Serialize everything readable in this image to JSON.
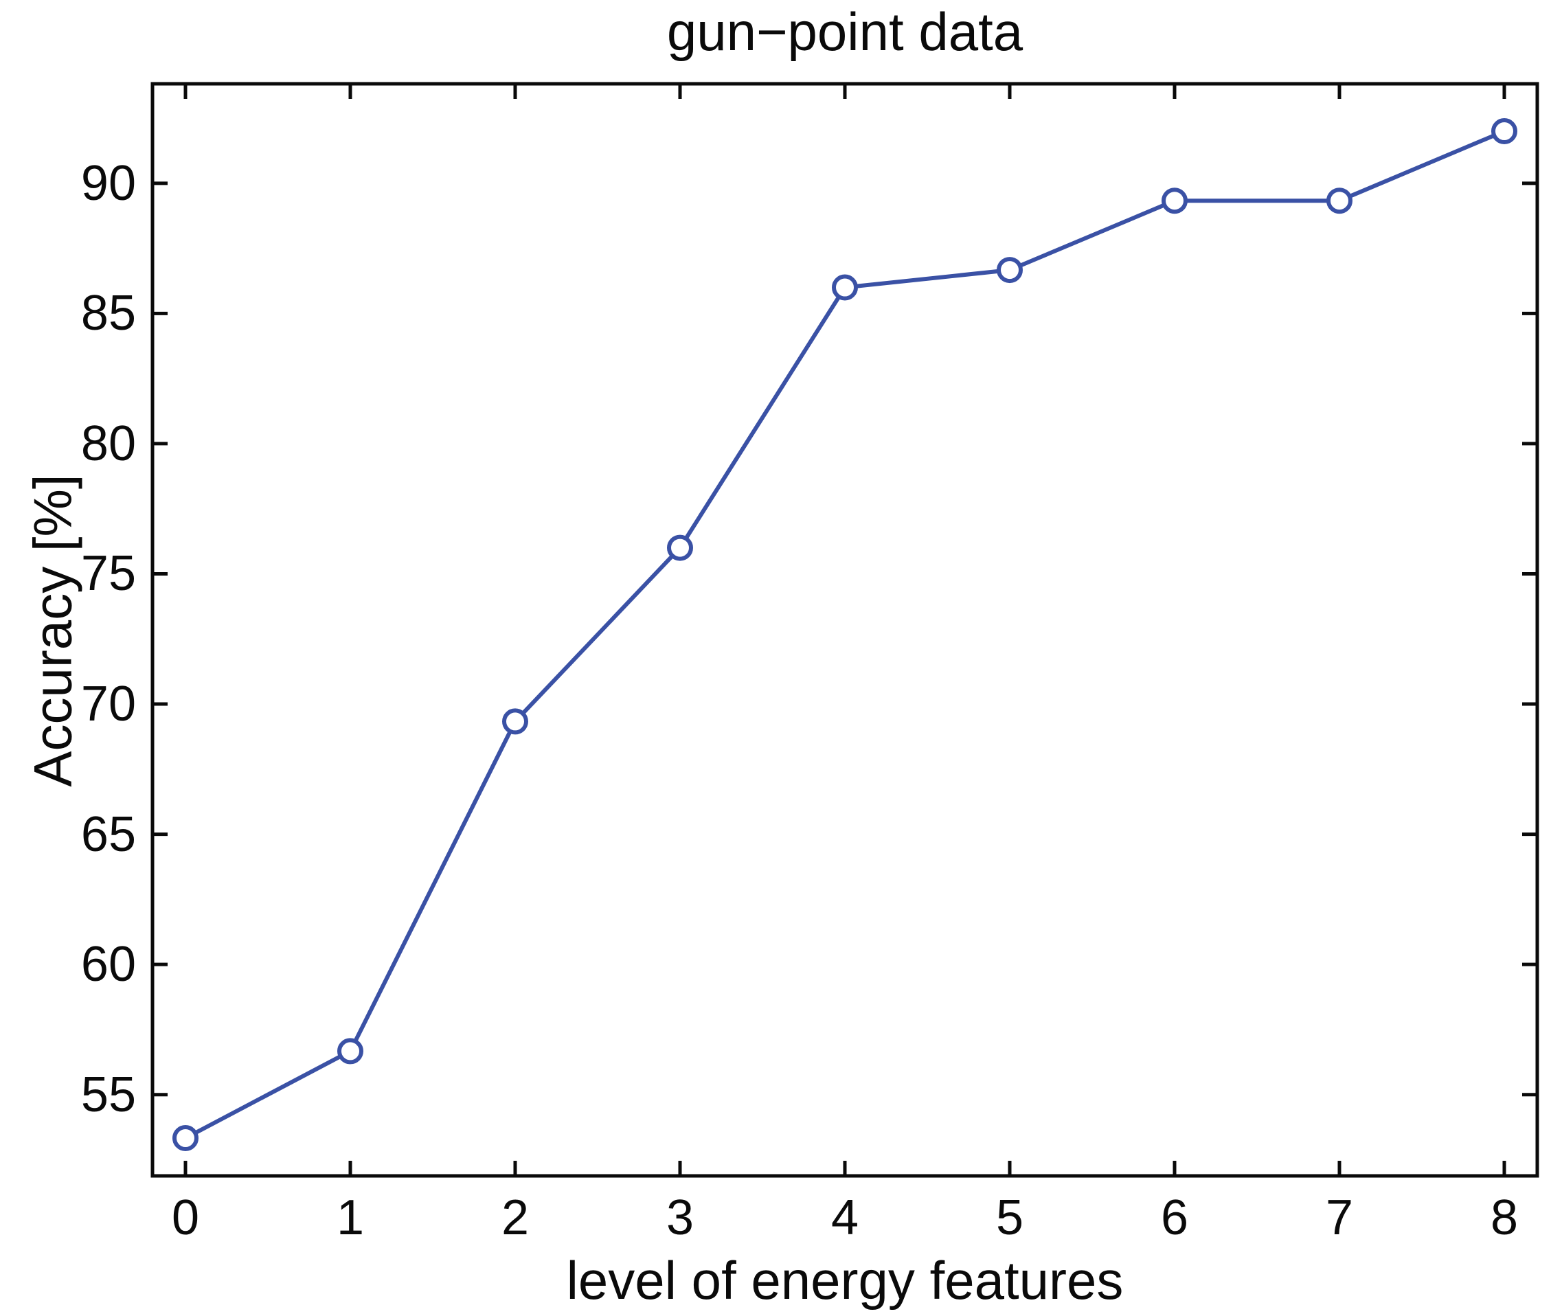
{
  "figure": {
    "background": "#ffffff",
    "text_color": "#0a0a0a"
  },
  "chart_data": {
    "type": "line",
    "title": "gun−point data",
    "xlabel": "level of energy features",
    "ylabel": "Accuracy [%]",
    "x": [
      0,
      1,
      2,
      3,
      4,
      5,
      6,
      7,
      8
    ],
    "y": [
      53.33,
      56.67,
      69.33,
      76.0,
      86.0,
      86.67,
      89.33,
      89.33,
      92.0
    ],
    "series": [
      {
        "name": "accuracy",
        "marker": "open-circle",
        "line_color": "#3A51A5"
      }
    ],
    "x_tick_values": [
      0,
      1,
      2,
      3,
      4,
      5,
      6,
      7,
      8
    ],
    "x_tick_labels": [
      "0",
      "1",
      "2",
      "3",
      "4",
      "5",
      "6",
      "7",
      "8"
    ],
    "y_tick_values": [
      55,
      60,
      65,
      70,
      75,
      80,
      85,
      90
    ],
    "y_tick_labels": [
      "55",
      "60",
      "65",
      "70",
      "75",
      "80",
      "85",
      "90"
    ],
    "xlim": [
      -0.2,
      8.2
    ],
    "ylim": [
      51.88,
      93.82
    ],
    "grid": false,
    "legend": null,
    "line_color": "#3A51A5",
    "axis_color": "#0a0a0a"
  }
}
